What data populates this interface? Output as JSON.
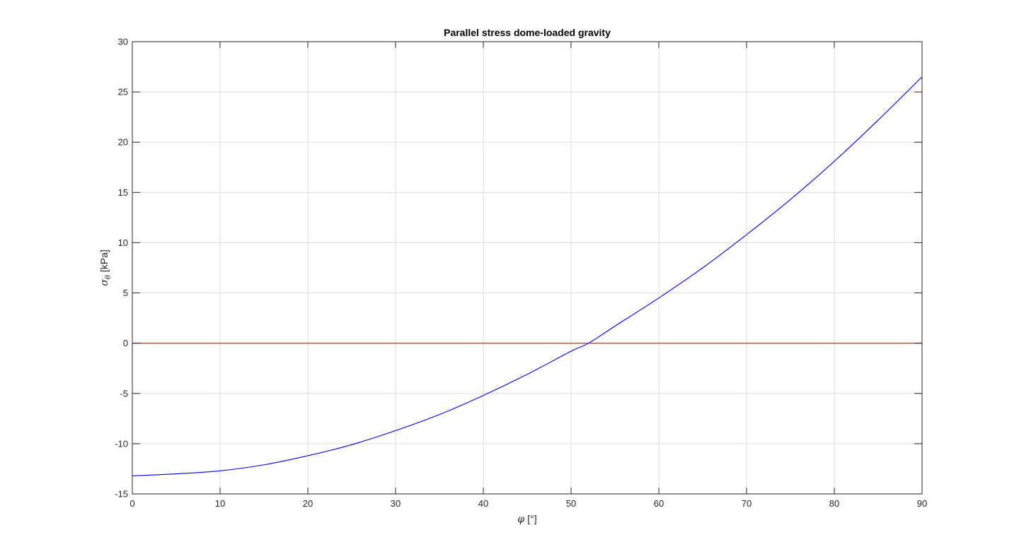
{
  "chart_data": {
    "type": "line",
    "title": "Parallel stress dome-loaded gravity",
    "xlabel": {
      "symbol": "φ",
      "unit": "[°]"
    },
    "ylabel": {
      "symbol": "σ",
      "subscript": "θ",
      "unit": "[kPa]"
    },
    "xlim": [
      0,
      90
    ],
    "ylim": [
      -15,
      30
    ],
    "xticks": [
      0,
      10,
      20,
      30,
      40,
      50,
      60,
      70,
      80,
      90
    ],
    "yticks": [
      -15,
      -10,
      -5,
      0,
      5,
      10,
      15,
      20,
      25,
      30
    ],
    "grid": true,
    "series": [
      {
        "color": "#0000ff",
        "x": [
          0,
          5,
          10,
          15,
          20,
          25,
          30,
          35,
          40,
          45,
          50,
          52,
          55,
          60,
          65,
          70,
          75,
          80,
          85,
          90
        ],
        "y": [
          -13.2,
          -13.0,
          -12.7,
          -12.1,
          -11.2,
          -10.1,
          -8.7,
          -7.1,
          -5.2,
          -3.1,
          -0.8,
          0.0,
          1.7,
          4.5,
          7.5,
          10.8,
          14.3,
          18.1,
          22.2,
          26.5
        ]
      },
      {
        "color": "#ff0000",
        "x": [
          0,
          90
        ],
        "y": [
          0,
          0
        ]
      }
    ]
  }
}
